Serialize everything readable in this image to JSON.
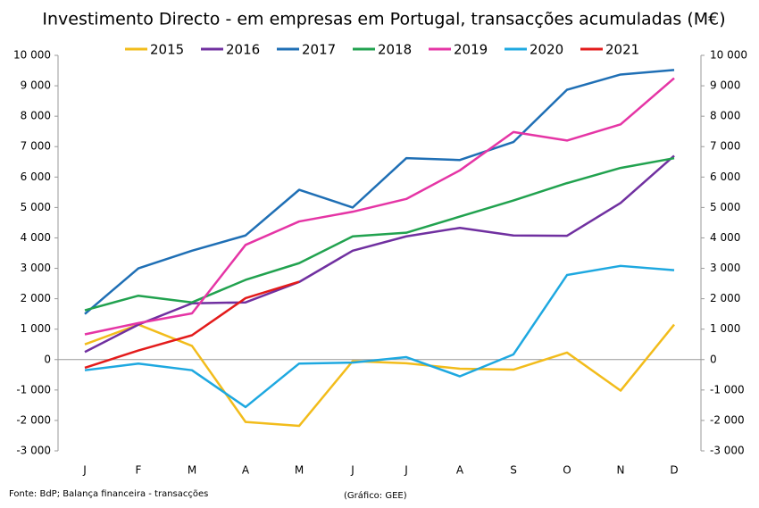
{
  "chart_data": {
    "type": "line",
    "title": "Investimento Directo - em empresas em Portugal, transacções acumuladas (M€)",
    "categories": [
      "J",
      "F",
      "M",
      "A",
      "M",
      "J",
      "J",
      "A",
      "S",
      "O",
      "N",
      "D"
    ],
    "series": [
      {
        "name": "2015",
        "color": "#f2bc1b",
        "values": [
          500,
          1150,
          450,
          -2050,
          -2180,
          -50,
          -120,
          -300,
          -330,
          230,
          -1020,
          1150
        ]
      },
      {
        "name": "2016",
        "color": "#7030a0",
        "values": [
          250,
          1150,
          1850,
          1880,
          2550,
          3580,
          4050,
          4330,
          4080,
          4070,
          5150,
          6700
        ]
      },
      {
        "name": "2017",
        "color": "#1f6fb5",
        "values": [
          1500,
          3000,
          3580,
          4080,
          5580,
          5000,
          6620,
          6560,
          7150,
          8870,
          9370,
          9520
        ]
      },
      {
        "name": "2018",
        "color": "#21a24f",
        "values": [
          1620,
          2100,
          1880,
          2620,
          3170,
          4050,
          4170,
          4700,
          5230,
          5800,
          6300,
          6620
        ]
      },
      {
        "name": "2019",
        "color": "#e535a5",
        "values": [
          830,
          1200,
          1520,
          3770,
          4540,
          4860,
          5280,
          6220,
          7480,
          7200,
          7730,
          9250
        ]
      },
      {
        "name": "2020",
        "color": "#1ea8e0",
        "values": [
          -350,
          -130,
          -350,
          -1560,
          -130,
          -100,
          80,
          -550,
          170,
          2780,
          3080,
          2940
        ]
      },
      {
        "name": "2021",
        "color": "#e31b1b",
        "values": [
          -270,
          300,
          800,
          2020,
          2560,
          null,
          null,
          null,
          null,
          null,
          null,
          null
        ]
      }
    ],
    "ylim": [
      -3000,
      10000
    ],
    "yticks": [
      {
        "value": -3000,
        "label": "-3 000"
      },
      {
        "value": -2000,
        "label": "-2 000"
      },
      {
        "value": -1000,
        "label": "-1 000"
      },
      0,
      {
        "value": 1000,
        "label": "1 000"
      },
      {
        "value": 2000,
        "label": "2 000"
      },
      {
        "value": 3000,
        "label": "3 000"
      },
      {
        "value": 4000,
        "label": "4 000"
      },
      {
        "value": 5000,
        "label": "5 000"
      },
      {
        "value": 6000,
        "label": "6 000"
      },
      {
        "value": 7000,
        "label": "7 000"
      },
      {
        "value": 8000,
        "label": "8 000"
      },
      {
        "value": 9000,
        "label": "9 000"
      },
      {
        "value": 10000,
        "label": "10 000"
      }
    ],
    "y2lim": [
      -3000,
      10000
    ],
    "y2ticks": [
      {
        "value": -3000,
        "label": "-3 000"
      },
      {
        "value": -2000,
        "label": "-2 000"
      },
      {
        "value": -1000,
        "label": "-1 000"
      },
      0,
      {
        "value": 1000,
        "label": "1 000"
      },
      {
        "value": 2000,
        "label": "2 000"
      },
      {
        "value": 3000,
        "label": "3 000"
      },
      {
        "value": 4000,
        "label": "4 000"
      },
      {
        "value": 5000,
        "label": "5 000"
      },
      {
        "value": 6000,
        "label": "6 000"
      },
      {
        "value": 7000,
        "label": "7 000"
      },
      {
        "value": 8000,
        "label": "8 000"
      },
      {
        "value": 9000,
        "label": "9 000"
      },
      {
        "value": 10000,
        "label": "10 000"
      }
    ],
    "legend": "top",
    "source": "Fonte: BdP; Balança financeira - transacções",
    "note": "(Gráfico: GEE)"
  }
}
